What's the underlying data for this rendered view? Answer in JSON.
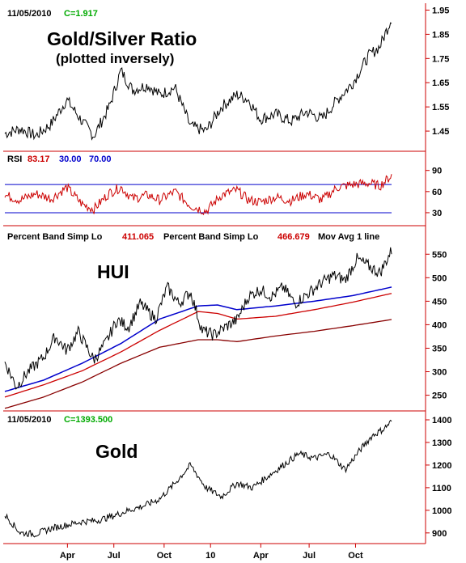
{
  "colors": {
    "background": "#ffffff",
    "axis": "#cc0000",
    "price": "#000000",
    "rsi_line": "#cc0000",
    "rsi_guides": "#0000cc",
    "mov_avg": "#0000cc",
    "band_upper": "#cc0000",
    "band_lower": "#880000",
    "date_label": "#000000",
    "value_label": "#00aa00",
    "rsi_value": "#cc0000",
    "rsi_low": "#0000cc",
    "rsi_high": "#0000cc",
    "band1_value": "#cc0000",
    "band2_value": "#cc0000"
  },
  "x_axis": {
    "tick_labels": [
      "Apr",
      "Jul",
      "Oct",
      "10",
      "Apr",
      "Jul",
      "Oct"
    ],
    "tick_positions": [
      0.12,
      0.24,
      0.37,
      0.49,
      0.62,
      0.745,
      0.865
    ]
  },
  "chart_data": [
    {
      "type": "line",
      "id": "gold_silver_ratio",
      "title": "Gold/Silver Ratio",
      "subtitle": "(plotted inversely)",
      "date_label": "11/05/2010",
      "value_label": "C=1.917",
      "yticks": [
        1.95,
        1.85,
        1.75,
        1.65,
        1.55,
        1.45
      ],
      "ylim": [
        1.37,
        1.965
      ],
      "series": [
        {
          "x": [
            0,
            0.04,
            0.08,
            0.12,
            0.16,
            0.2,
            0.23,
            0.27,
            0.3,
            0.33,
            0.37,
            0.4,
            0.44,
            0.48,
            0.52,
            0.56,
            0.6,
            0.63,
            0.66,
            0.7,
            0.74,
            0.78,
            0.82,
            0.86,
            0.9,
            0.94,
            0.97,
            1.0
          ],
          "values": [
            1.44,
            1.46,
            1.43,
            1.48,
            1.58,
            1.49,
            1.43,
            1.55,
            1.7,
            1.62,
            1.64,
            1.6,
            1.63,
            1.47,
            1.45,
            1.55,
            1.6,
            1.58,
            1.5,
            1.52,
            1.49,
            1.53,
            1.5,
            1.58,
            1.65,
            1.76,
            1.8,
            1.917
          ]
        }
      ]
    },
    {
      "type": "line",
      "id": "rsi",
      "title": "RSI",
      "rsi_value": "83.17",
      "rsi_low": "30.00",
      "rsi_high": "70.00",
      "yticks": [
        90,
        60,
        30
      ],
      "ylim": [
        15,
        100
      ],
      "guides": [
        30,
        70
      ],
      "series": [
        {
          "x": [
            0,
            0.04,
            0.08,
            0.12,
            0.16,
            0.2,
            0.23,
            0.27,
            0.3,
            0.33,
            0.37,
            0.4,
            0.44,
            0.48,
            0.52,
            0.56,
            0.6,
            0.63,
            0.66,
            0.7,
            0.74,
            0.78,
            0.82,
            0.86,
            0.9,
            0.94,
            0.97,
            1.0
          ],
          "values": [
            55,
            48,
            57,
            50,
            66,
            42,
            35,
            58,
            66,
            50,
            55,
            48,
            60,
            40,
            32,
            55,
            62,
            48,
            45,
            52,
            47,
            57,
            48,
            66,
            70,
            72,
            68,
            83
          ]
        }
      ]
    },
    {
      "type": "line",
      "id": "hui",
      "title": "HUI",
      "legend": [
        {
          "name": "Percent Band Simp Lo",
          "value": "411.065"
        },
        {
          "name": "Percent Band Simp Lo",
          "value": "466.679"
        },
        {
          "name": "Mov Avg 1 line",
          "value": ""
        }
      ],
      "yticks": [
        550,
        500,
        450,
        400,
        350,
        300,
        250
      ],
      "ylim": [
        220,
        578
      ],
      "series": [
        {
          "name": "HUI",
          "x": [
            0,
            0.03,
            0.06,
            0.1,
            0.13,
            0.16,
            0.19,
            0.23,
            0.26,
            0.29,
            0.32,
            0.35,
            0.39,
            0.42,
            0.45,
            0.48,
            0.51,
            0.54,
            0.57,
            0.6,
            0.63,
            0.66,
            0.69,
            0.72,
            0.75,
            0.79,
            0.82,
            0.85,
            0.88,
            0.91,
            0.94,
            0.97,
            1.0
          ],
          "values": [
            320,
            268,
            300,
            330,
            375,
            345,
            385,
            325,
            360,
            410,
            395,
            445,
            412,
            480,
            445,
            470,
            388,
            378,
            395,
            410,
            460,
            475,
            460,
            480,
            445,
            470,
            490,
            505,
            495,
            540,
            525,
            510,
            558
          ]
        },
        {
          "name": "Mov Avg 1 line",
          "x": [
            0,
            0.1,
            0.2,
            0.3,
            0.4,
            0.5,
            0.55,
            0.6,
            0.7,
            0.8,
            0.9,
            1.0
          ],
          "values": [
            258,
            282,
            318,
            360,
            412,
            440,
            442,
            432,
            440,
            450,
            462,
            480
          ]
        },
        {
          "name": "Percent Band Simp Lo",
          "x": [
            0,
            0.1,
            0.2,
            0.3,
            0.4,
            0.5,
            0.55,
            0.6,
            0.7,
            0.8,
            0.9,
            1.0
          ],
          "values": [
            246,
            272,
            302,
            342,
            388,
            428,
            424,
            412,
            418,
            432,
            448,
            466.679
          ]
        },
        {
          "name": "Percent Band Simp Lo",
          "x": [
            0,
            0.1,
            0.2,
            0.3,
            0.4,
            0.5,
            0.55,
            0.6,
            0.7,
            0.8,
            0.9,
            1.0
          ],
          "values": [
            222,
            246,
            278,
            318,
            352,
            368,
            368,
            364,
            376,
            386,
            398,
            411.065
          ]
        }
      ]
    },
    {
      "type": "line",
      "id": "gold",
      "title": "Gold",
      "date_label": "11/05/2010",
      "value_label": "C=1393.500",
      "yticks": [
        1400,
        1300,
        1200,
        1100,
        1000,
        900
      ],
      "ylim": [
        860,
        1425
      ],
      "series": [
        {
          "x": [
            0,
            0.04,
            0.08,
            0.12,
            0.16,
            0.2,
            0.24,
            0.28,
            0.32,
            0.36,
            0.4,
            0.44,
            0.48,
            0.52,
            0.56,
            0.6,
            0.64,
            0.68,
            0.72,
            0.76,
            0.8,
            0.84,
            0.88,
            0.92,
            0.95,
            0.98,
            1.0
          ],
          "values": [
            980,
            900,
            895,
            920,
            935,
            950,
            955,
            975,
            1000,
            1020,
            1050,
            1120,
            1200,
            1100,
            1060,
            1120,
            1100,
            1150,
            1200,
            1250,
            1230,
            1250,
            1180,
            1270,
            1330,
            1360,
            1393.5
          ]
        }
      ]
    }
  ]
}
